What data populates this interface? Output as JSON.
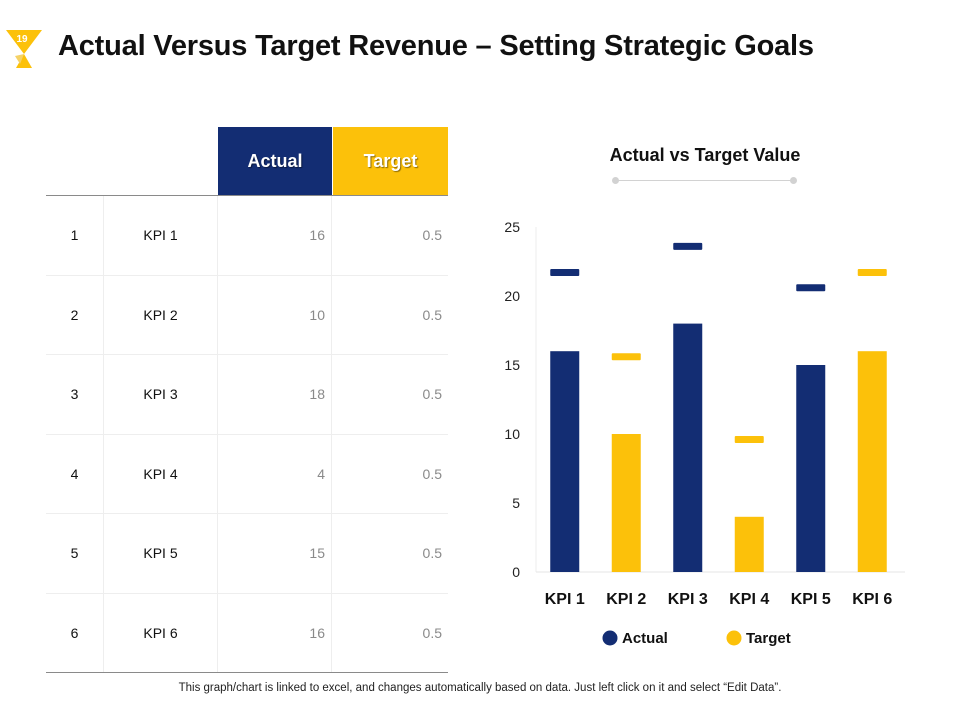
{
  "slide": {
    "number": "19",
    "title": "Actual Versus Target Revenue – Setting Strategic Goals",
    "accent_color": "#fcc10a",
    "footer_note": "This graph/chart is linked to excel, and changes automatically based on data. Just left click on it and select “Edit Data”."
  },
  "table": {
    "headers": {
      "actual": "Actual",
      "target": "Target"
    },
    "header_colors": {
      "actual": "#132d73",
      "target": "#fcc10a"
    },
    "rows": [
      {
        "index": "1",
        "kpi": "KPI 1",
        "actual": "16",
        "target": "0.5"
      },
      {
        "index": "2",
        "kpi": "KPI 2",
        "actual": "10",
        "target": "0.5"
      },
      {
        "index": "3",
        "kpi": "KPI 3",
        "actual": "18",
        "target": "0.5"
      },
      {
        "index": "4",
        "kpi": "KPI 4",
        "actual": "4",
        "target": "0.5"
      },
      {
        "index": "5",
        "kpi": "KPI 5",
        "actual": "15",
        "target": "0.5"
      },
      {
        "index": "6",
        "kpi": "KPI 6",
        "actual": "16",
        "target": "0.5"
      }
    ]
  },
  "chart_data": {
    "type": "bar",
    "title": "Actual vs Target Value",
    "xlabel": "",
    "ylabel": "",
    "ylim": [
      0,
      25
    ],
    "yticks": [
      0,
      5,
      10,
      15,
      20,
      25
    ],
    "grid": false,
    "legend_position": "bottom",
    "categories": [
      "KPI 1",
      "KPI 2",
      "KPI 3",
      "KPI 4",
      "KPI 5",
      "KPI 6"
    ],
    "series": [
      {
        "name": "Actual",
        "color": "#132d73"
      },
      {
        "name": "Target",
        "color": "#fcc10a"
      }
    ],
    "bars": [
      {
        "category": "KPI 1",
        "series": "Actual",
        "value": 16,
        "marker": 21.7
      },
      {
        "category": "KPI 2",
        "series": "Target",
        "value": 10,
        "marker": 15.6
      },
      {
        "category": "KPI 3",
        "series": "Actual",
        "value": 18,
        "marker": 23.6
      },
      {
        "category": "KPI 4",
        "series": "Target",
        "value": 4,
        "marker": 9.6
      },
      {
        "category": "KPI 5",
        "series": "Actual",
        "value": 15,
        "marker": 20.6
      },
      {
        "category": "KPI 6",
        "series": "Target",
        "value": 16,
        "marker": 21.7
      }
    ]
  }
}
